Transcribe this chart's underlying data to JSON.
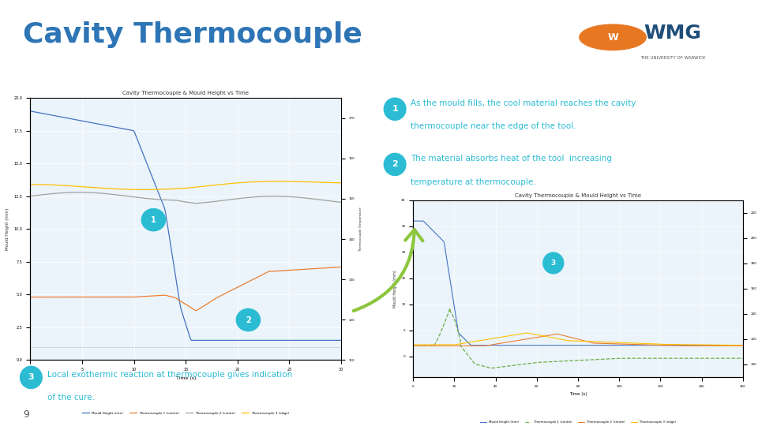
{
  "title": "Cavity Thermocouple",
  "title_color": "#2E75B6",
  "background_color": "#FFFFFF",
  "header_line_color": "#2BBCD4",
  "point1_text_line1": "As the mould fills, the cool material reaches the cavity",
  "point1_text_line2": "thermocouple near the edge of the tool.",
  "point2_text_line1": "The material absorbs heat of the tool  increasing",
  "point2_text_line2": "temperature at thermocouple.",
  "point3_text_line1": "Local exothermic reaction at thermocouple gives indication",
  "point3_text_line2": "of the cure.",
  "bullet_color": "#2BBCD4",
  "text_color": "#404040",
  "page_number": "9",
  "chart_title": "Cavity Thermocouple & Mould Height vs Time",
  "chart_xlabel": "Time (s)",
  "chart_bg": "#EBF4FA",
  "wmg_orange": "#E87722",
  "wmg_blue": "#003366",
  "arrow_color": "#8DC63F",
  "dashed_border_color": "#92D050"
}
